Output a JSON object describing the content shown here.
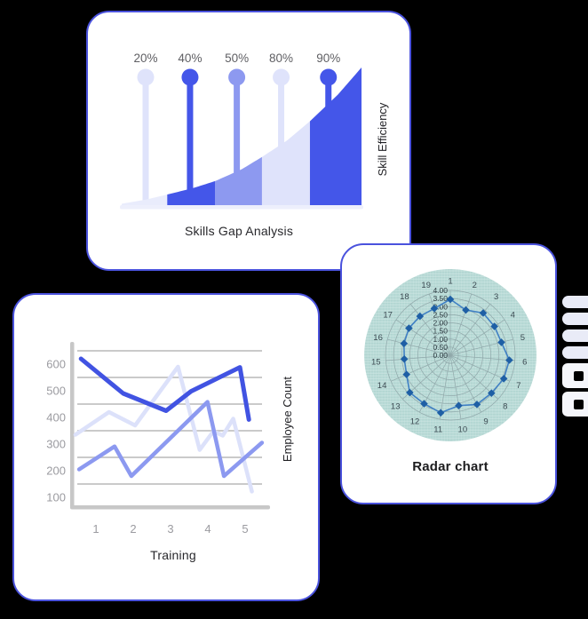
{
  "canvas": {
    "background": "#000000",
    "card_border": "#4a52dd",
    "card_bg": "#ffffff"
  },
  "chart_data": [
    {
      "type": "area",
      "title": "Skills Gap Analysis",
      "xlabel": "",
      "ylabel": "Skill Efficiency",
      "lollipops": [
        {
          "label": "20%",
          "x": 0.1,
          "color": "#dfe3fb"
        },
        {
          "label": "40%",
          "x": 0.285,
          "color": "#4456e9"
        },
        {
          "label": "50%",
          "x": 0.48,
          "color": "#8d99f0"
        },
        {
          "label": "80%",
          "x": 0.665,
          "color": "#dfe3fb"
        },
        {
          "label": "90%",
          "x": 0.862,
          "color": "#4456e9"
        }
      ],
      "segments": [
        {
          "from": 0,
          "to": 0.19,
          "color": "#e9ecfc"
        },
        {
          "from": 0.19,
          "to": 0.39,
          "color": "#4456e9"
        },
        {
          "from": 0.39,
          "to": 0.585,
          "color": "#8d99f0"
        },
        {
          "from": 0.585,
          "to": 0.785,
          "color": "#dfe3fb"
        },
        {
          "from": 0.785,
          "to": 1,
          "color": "#4456e9"
        }
      ],
      "curve": [
        [
          0,
          0.01
        ],
        [
          0.1,
          0.04
        ],
        [
          0.19,
          0.077
        ],
        [
          0.3,
          0.125
        ],
        [
          0.39,
          0.175
        ],
        [
          0.5,
          0.26
        ],
        [
          0.585,
          0.35
        ],
        [
          0.69,
          0.47
        ],
        [
          0.785,
          0.61
        ],
        [
          0.9,
          0.8
        ],
        [
          1,
          1
        ]
      ],
      "baseline_color": "#edeffc",
      "label_color": "#5f5f63",
      "title_color": "#28282c"
    },
    {
      "type": "line",
      "title": "",
      "xlabel": "Training",
      "ylabel": "Employee Count",
      "x_ticks": [
        "1",
        "2",
        "3",
        "4",
        "5"
      ],
      "y_ticks": [
        600,
        500,
        400,
        300,
        200,
        100
      ],
      "y_gridlines": [
        650,
        550,
        450,
        350,
        250,
        150
      ],
      "xlim": [
        0.4,
        5.5
      ],
      "ylim": [
        60,
        683
      ],
      "series": [
        {
          "name": "series-light",
          "color": "#dce1fa",
          "width": 4.5,
          "points": [
            [
              0.45,
              335
            ],
            [
              1.35,
              420
            ],
            [
              2.05,
              370
            ],
            [
              3.2,
              590
            ],
            [
              3.78,
              278
            ],
            [
              4.15,
              348
            ],
            [
              4.4,
              332
            ],
            [
              4.68,
              395
            ],
            [
              5.18,
              122
            ]
          ]
        },
        {
          "name": "series-medium",
          "color": "#8c99f0",
          "width": 4.5,
          "points": [
            [
              0.55,
              205
            ],
            [
              1.5,
              291
            ],
            [
              1.95,
              180
            ],
            [
              3.99,
              458
            ],
            [
              4.43,
              180
            ],
            [
              5.45,
              305
            ]
          ]
        },
        {
          "name": "series-dark",
          "color": "#4153e2",
          "width": 5,
          "points": [
            [
              0.6,
              620
            ],
            [
              1.73,
              490
            ],
            [
              2.88,
              425
            ],
            [
              3.55,
              498
            ],
            [
              4.86,
              588
            ],
            [
              5.1,
              392
            ]
          ]
        }
      ],
      "axis_color": "#c7c7c7",
      "grid_color": "#cacaca",
      "tick_color": "#9b9ba0",
      "title_color": "#28282c",
      "grid": true,
      "legend": "none"
    },
    {
      "type": "radar",
      "title": "Radar chart",
      "categories": [
        "1",
        "2",
        "3",
        "4",
        "5",
        "6",
        "7",
        "8",
        "9",
        "10",
        "11",
        "12",
        "13",
        "14",
        "15",
        "16",
        "17",
        "18",
        "19"
      ],
      "values": [
        3.45,
        2.95,
        3.3,
        3.25,
        3.25,
        3.65,
        3.6,
        3.45,
        3.45,
        3.15,
        3.6,
        3.4,
        3.4,
        2.95,
        2.85,
        2.95,
        3.05,
        3.05,
        3.05
      ],
      "r_ticks": [
        "0.00",
        "0.50",
        "1.00",
        "1.50",
        "2.00",
        "2.50",
        "3.00",
        "3.50",
        "4.00"
      ],
      "r_max": 4.0,
      "bg_color": "#b7dad6",
      "grid_color": "#90a8aa",
      "line_color": "#4080c4",
      "marker_color": "#1e5fa5",
      "tick_color": "#2e3c42",
      "category_color": "#3b4a52",
      "title_color": "#1c1c1e"
    }
  ],
  "edge_decoration": {
    "glyphs": [
      "bar",
      "bar",
      "bar",
      "bar",
      "square",
      "square"
    ],
    "bar_color": "#e9ebf7",
    "square_color": "#f5f6fb",
    "hole_color": "#000000"
  }
}
